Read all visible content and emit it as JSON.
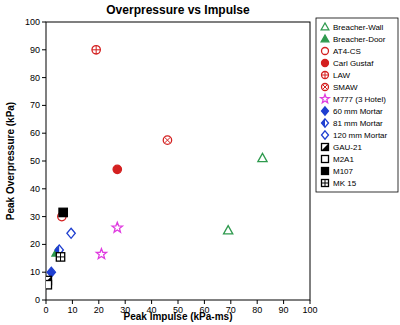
{
  "chart_data": {
    "type": "scatter",
    "title": "Overpressure vs Impulse",
    "x_label": "Peak Impulse (kPa-ms)",
    "y_label": "Peak Overpressure (kPa)",
    "xlim": [
      0,
      100
    ],
    "ylim": [
      0,
      100
    ],
    "xticks": [
      0,
      10,
      20,
      30,
      40,
      50,
      60,
      70,
      80,
      90,
      100
    ],
    "yticks": [
      0,
      10,
      20,
      30,
      40,
      50,
      60,
      70,
      80,
      90,
      100
    ],
    "grid": false,
    "legend": "right",
    "series": [
      {
        "name": "Breacher-Wall",
        "color": "#2e9a4e",
        "marker": "triangle-open",
        "x": [
          69,
          82
        ],
        "values": [
          25,
          51
        ]
      },
      {
        "name": "Breacher-Door",
        "color": "#2e9a4e",
        "marker": "triangle",
        "x": [
          4
        ],
        "values": [
          17
        ]
      },
      {
        "name": "AT4-CS",
        "color": "#d42020",
        "marker": "circle-open",
        "x": [
          6
        ],
        "values": [
          30
        ]
      },
      {
        "name": "Carl Gustaf",
        "color": "#d42020",
        "marker": "circle",
        "x": [
          27
        ],
        "values": [
          47
        ]
      },
      {
        "name": "LAW",
        "color": "#d42020",
        "marker": "circle-plus",
        "x": [
          19
        ],
        "values": [
          90
        ]
      },
      {
        "name": "SMAW",
        "color": "#d42020",
        "marker": "circle-x",
        "x": [
          46
        ],
        "values": [
          57.5
        ]
      },
      {
        "name": "M777 (3 Hotel)",
        "color": "#e03ce0",
        "marker": "star",
        "x": [
          21,
          27
        ],
        "values": [
          16.5,
          26
        ]
      },
      {
        "name": "60 mm Mortar",
        "color": "#1f3fd0",
        "marker": "diamond",
        "x": [
          2
        ],
        "values": [
          10
        ]
      },
      {
        "name": "81 mm Mortar",
        "color": "#1f3fd0",
        "marker": "diamond-half",
        "x": [
          5
        ],
        "values": [
          18
        ]
      },
      {
        "name": "120 mm Mortar",
        "color": "#1f3fd0",
        "marker": "diamond-open",
        "x": [
          9.5
        ],
        "values": [
          24
        ]
      },
      {
        "name": "GAU-21",
        "color": "#000000",
        "marker": "square-half",
        "x": [
          0.5
        ],
        "values": [
          7
        ]
      },
      {
        "name": "M2A1",
        "color": "#000000",
        "marker": "square-open",
        "x": [
          0.5
        ],
        "values": [
          5.5
        ]
      },
      {
        "name": "M107",
        "color": "#000000",
        "marker": "square",
        "x": [
          6.5
        ],
        "values": [
          31.5
        ]
      },
      {
        "name": "MK 15",
        "color": "#000000",
        "marker": "square-grid",
        "x": [
          5.5
        ],
        "values": [
          15.5
        ]
      }
    ]
  }
}
